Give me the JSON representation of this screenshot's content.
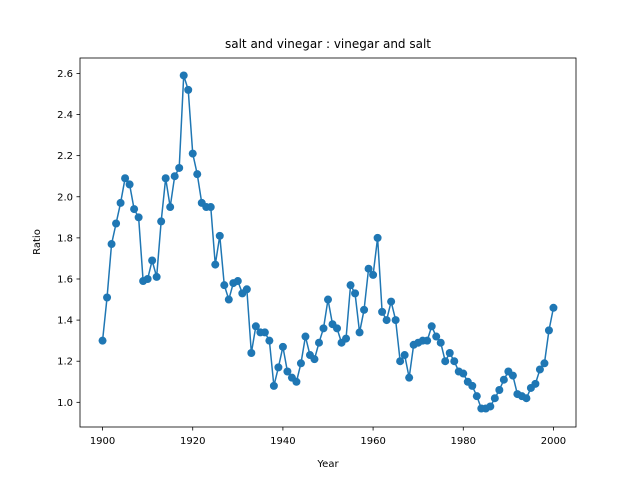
{
  "chart_data": {
    "type": "line",
    "title": "salt and vinegar : vinegar and salt",
    "xlabel": "Year",
    "ylabel": "Ratio",
    "xlim": [
      1895,
      2005
    ],
    "ylim": [
      0.88,
      2.675
    ],
    "xticks": [
      1900,
      1920,
      1940,
      1960,
      1980,
      2000
    ],
    "yticks": [
      1.0,
      1.2,
      1.4,
      1.6,
      1.8,
      2.0,
      2.2,
      2.4,
      2.6
    ],
    "ytick_labels": [
      "1.0",
      "1.2",
      "1.4",
      "1.6",
      "1.8",
      "2.0",
      "2.2",
      "2.4",
      "2.6"
    ],
    "grid": false,
    "color": "#1f77b4",
    "markers": "circle",
    "series": [
      {
        "x": [
          1900,
          1901,
          1902,
          1903,
          1904,
          1905,
          1906,
          1907,
          1908,
          1909,
          1910,
          1911,
          1912,
          1913,
          1914,
          1915,
          1916,
          1917,
          1918,
          1919,
          1920,
          1921,
          1922,
          1923,
          1924,
          1925,
          1926,
          1927,
          1928,
          1929,
          1930,
          1931,
          1932,
          1933,
          1934,
          1935,
          1936,
          1937,
          1938,
          1939,
          1940,
          1941,
          1942,
          1943,
          1944,
          1945,
          1946,
          1947,
          1948,
          1949,
          1950,
          1951,
          1952,
          1953,
          1954,
          1955,
          1956,
          1957,
          1958,
          1959,
          1960,
          1961,
          1962,
          1963,
          1964,
          1965,
          1966,
          1967,
          1968,
          1969,
          1970,
          1971,
          1972,
          1973,
          1974,
          1975,
          1976,
          1977,
          1978,
          1979,
          1980,
          1981,
          1982,
          1983,
          1984,
          1985,
          1986,
          1987,
          1988,
          1989,
          1990,
          1991,
          1992,
          1993,
          1994,
          1995,
          1996,
          1997,
          1998,
          1999,
          2000
        ],
        "values": [
          1.3,
          1.51,
          1.77,
          1.87,
          1.97,
          2.09,
          2.06,
          1.94,
          1.9,
          1.59,
          1.6,
          1.69,
          1.61,
          1.88,
          2.09,
          1.95,
          2.1,
          2.14,
          2.59,
          2.52,
          2.21,
          2.11,
          1.97,
          1.95,
          1.95,
          1.67,
          1.81,
          1.57,
          1.5,
          1.58,
          1.59,
          1.53,
          1.55,
          1.24,
          1.37,
          1.34,
          1.34,
          1.3,
          1.08,
          1.17,
          1.27,
          1.15,
          1.12,
          1.1,
          1.19,
          1.32,
          1.23,
          1.21,
          1.29,
          1.36,
          1.5,
          1.38,
          1.36,
          1.29,
          1.31,
          1.57,
          1.53,
          1.34,
          1.45,
          1.65,
          1.62,
          1.8,
          1.44,
          1.4,
          1.49,
          1.4,
          1.2,
          1.23,
          1.12,
          1.28,
          1.29,
          1.3,
          1.3,
          1.37,
          1.32,
          1.29,
          1.2,
          1.24,
          1.2,
          1.15,
          1.14,
          1.1,
          1.08,
          1.03,
          0.97,
          0.97,
          0.98,
          1.02,
          1.06,
          1.11,
          1.15,
          1.13,
          1.04,
          1.03,
          1.02,
          1.07,
          1.09,
          1.16,
          1.19,
          1.35,
          1.46
        ]
      }
    ]
  }
}
